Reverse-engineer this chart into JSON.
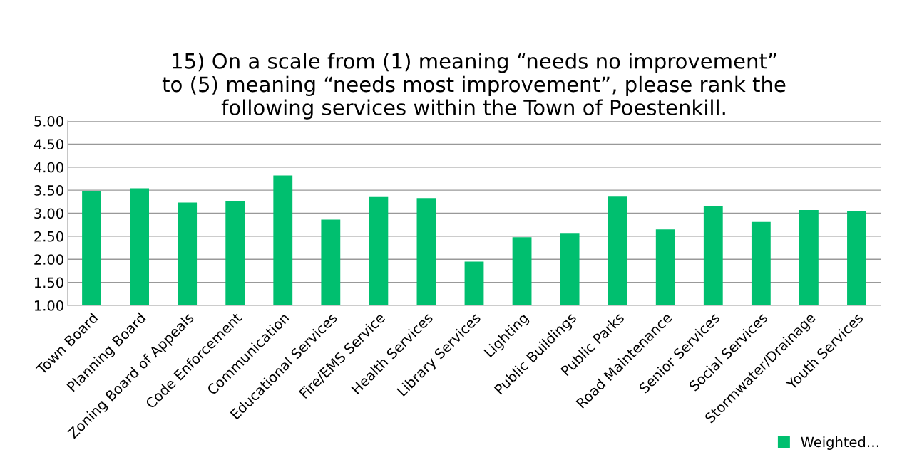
{
  "chart_data": {
    "type": "bar",
    "title": "15) On a scale from (1) meaning “needs no improvement”\nto (5) meaning “needs most improvement”, please rank the\nfollowing services within the Town of Poestenkill.",
    "categories": [
      "Town Board",
      "Planning Board",
      "Zoning Board of Appeals",
      "Code Enforcement",
      "Communication",
      "Educational Services",
      "Fire/EMS Service",
      "Health Services",
      "Library Services",
      "Lighting",
      "Public Buildings",
      "Public Parks",
      "Road Maintenance",
      "Senior Services",
      "Social Services",
      "Stormwater/Drainage",
      "Youth Services"
    ],
    "series": [
      {
        "name": "Weighted…",
        "color": "#00bf6f",
        "values": [
          3.47,
          3.54,
          3.23,
          3.27,
          3.82,
          2.86,
          3.35,
          3.33,
          1.95,
          2.48,
          2.57,
          3.36,
          2.65,
          3.15,
          2.81,
          3.07,
          3.05
        ]
      }
    ],
    "ylim": [
      1,
      5
    ],
    "yticks": [
      {
        "value": 1,
        "label": "1.00"
      },
      {
        "value": 1.5,
        "label": "1.50"
      },
      {
        "value": 2,
        "label": "2.00"
      },
      {
        "value": 2.5,
        "label": "2.50"
      },
      {
        "value": 3,
        "label": "3.00"
      },
      {
        "value": 3.5,
        "label": "3.50"
      },
      {
        "value": 4,
        "label": "4.00"
      },
      {
        "value": 4.5,
        "label": "4.50"
      },
      {
        "value": 5,
        "label": "5.00"
      }
    ],
    "grid": "y",
    "legend": "bottom right"
  }
}
